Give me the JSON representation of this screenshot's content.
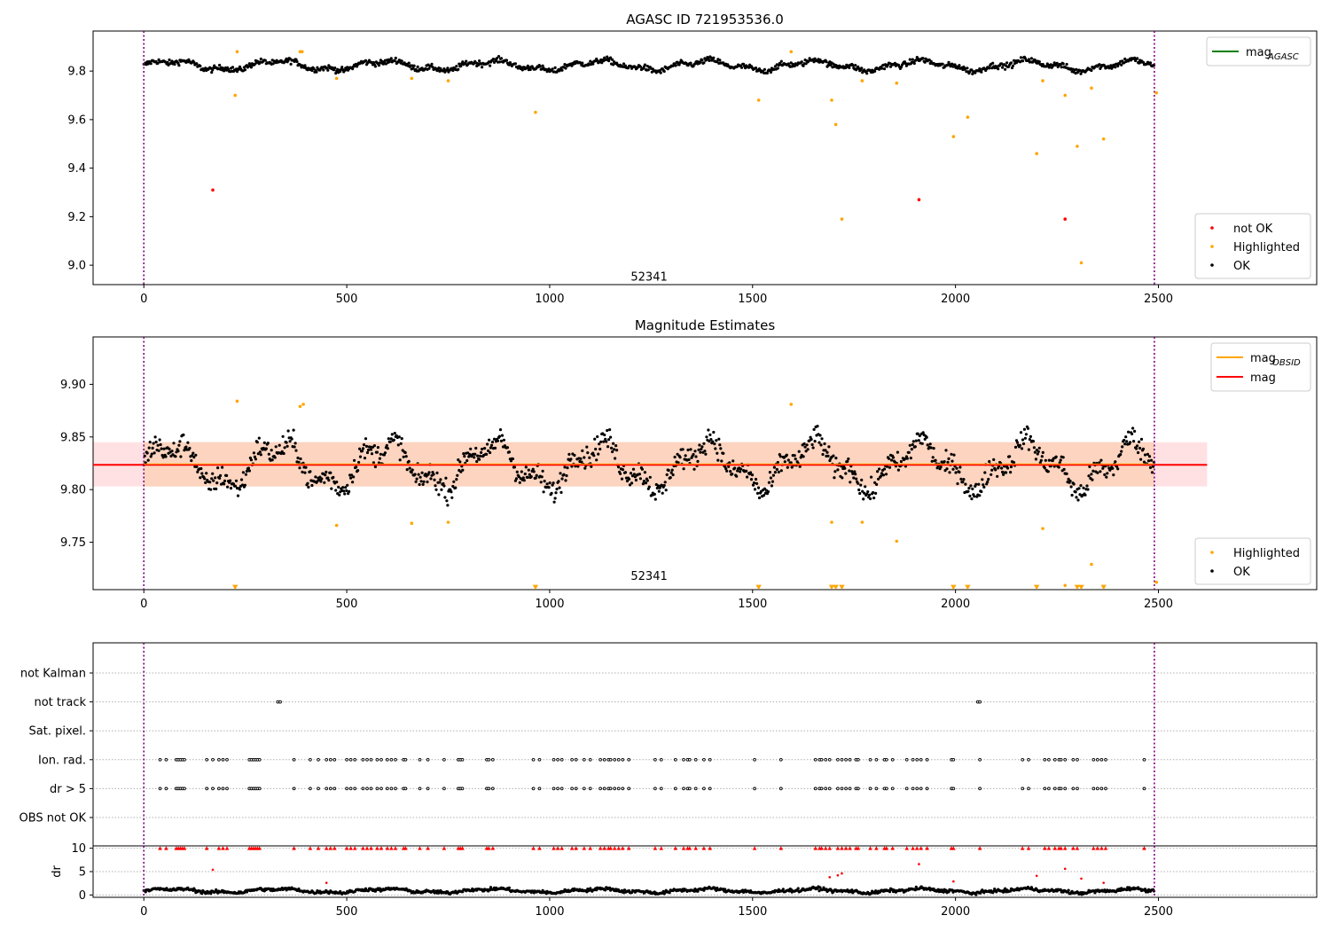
{
  "chart_data": [
    {
      "type": "scatter",
      "title": "AGASC ID 721953536.0",
      "xlim": [
        -125,
        2890
      ],
      "ylim": [
        8.92,
        9.965
      ],
      "x_ticks": [
        0,
        500,
        1000,
        1500,
        2000,
        2500
      ],
      "y_ticks": [
        9.0,
        9.2,
        9.4,
        9.6,
        9.8
      ],
      "vlines": [
        0,
        2490
      ],
      "obsid_label": {
        "text": "52341",
        "x": 1245,
        "y": 8.955
      },
      "baseline": {
        "mean": 9.823,
        "amplitude": 0.022,
        "noise": 0.012
      },
      "legend_lines": [
        {
          "label": "mag",
          "sub": "AGASC",
          "color": "#008000"
        }
      ],
      "legend_points": [
        {
          "label": "not OK",
          "color": "#ff0000"
        },
        {
          "label": "Highlighted",
          "color": "#ffa500"
        },
        {
          "label": "OK",
          "color": "#000000"
        }
      ],
      "series": [
        {
          "name": "not OK",
          "color": "#ff0000",
          "x": [
            170,
            1910,
            2270
          ],
          "y": [
            9.31,
            9.27,
            9.19
          ]
        },
        {
          "name": "Highlighted",
          "color": "#ffa500",
          "x": [
            225,
            230,
            385,
            390,
            475,
            660,
            750,
            965,
            1515,
            1595,
            1695,
            1705,
            1720,
            1770,
            1855,
            1995,
            2030,
            2200,
            2215,
            2270,
            2300,
            2310,
            2335,
            2365,
            2495
          ],
          "y": [
            9.7,
            9.88,
            9.88,
            9.88,
            9.77,
            9.77,
            9.76,
            9.63,
            9.68,
            9.88,
            9.68,
            9.58,
            9.19,
            9.76,
            9.75,
            9.53,
            9.61,
            9.46,
            9.76,
            9.7,
            9.49,
            9.01,
            9.73,
            9.52,
            9.71
          ]
        }
      ]
    },
    {
      "type": "scatter",
      "title": "Magnitude Estimates",
      "xlim": [
        -125,
        2890
      ],
      "ylim": [
        9.705,
        9.945
      ],
      "x_ticks": [
        0,
        500,
        1000,
        1500,
        2000,
        2500
      ],
      "y_ticks": [
        9.75,
        9.8,
        9.85,
        9.9
      ],
      "vlines": [
        0,
        2490
      ],
      "obsid_label": {
        "text": "52341",
        "x": 1245,
        "y": 9.711
      },
      "mean_line": {
        "y": 9.8235,
        "x0": -125,
        "x1": 2620,
        "color": "#ff0000"
      },
      "band": {
        "y0": 9.803,
        "y1": 9.845,
        "x0": -125,
        "x1": 2620
      },
      "baseline": {
        "mean": 9.823,
        "amplitude": 0.024,
        "noise": 0.011
      },
      "legend_lines": [
        {
          "label": "mag",
          "sub": "OBSID",
          "color": "#ffa500"
        },
        {
          "label": "mag",
          "sub": "",
          "color": "#ff0000"
        }
      ],
      "legend_points": [
        {
          "label": "Highlighted",
          "color": "#ffa500"
        },
        {
          "label": "OK",
          "color": "#000000"
        }
      ],
      "series": [
        {
          "name": "Highlighted",
          "color": "#ffa500",
          "x": [
            230,
            385,
            393,
            475,
            660,
            750,
            1595,
            1695,
            1770,
            1855,
            2215,
            2270,
            2335,
            2495
          ],
          "y": [
            9.884,
            9.879,
            9.881,
            9.766,
            9.768,
            9.769,
            9.881,
            9.769,
            9.769,
            9.751,
            9.763,
            9.709,
            9.729,
            9.712
          ]
        },
        {
          "name": "Highlighted (below range)",
          "color": "#ffa500",
          "marker": "triangle-down",
          "x": [
            225,
            965,
            1515,
            1695,
            1705,
            1720,
            1995,
            2030,
            2200,
            2300,
            2310,
            2365
          ],
          "y": [
            9.707,
            9.707,
            9.707,
            9.707,
            9.707,
            9.707,
            9.707,
            9.707,
            9.707,
            9.707,
            9.707,
            9.707
          ]
        }
      ]
    },
    {
      "type": "event_flags",
      "xlim": [
        -125,
        2890
      ],
      "categories": [
        "not Kalman",
        "not track",
        "Sat. pixel.",
        "Ion. rad.",
        "dr > 5",
        "OBS not OK"
      ],
      "vlines": [
        0,
        2490
      ],
      "events": {
        "not track": [
          330,
          336,
          2055,
          2060
        ],
        "Ion. rad.": [
          40,
          55,
          80,
          85,
          90,
          95,
          100,
          155,
          170,
          185,
          195,
          205,
          260,
          265,
          270,
          275,
          280,
          285,
          370,
          410,
          430,
          450,
          460,
          470,
          500,
          510,
          520,
          540,
          550,
          560,
          575,
          585,
          600,
          610,
          620,
          640,
          645,
          680,
          700,
          740,
          775,
          780,
          785,
          845,
          850,
          860,
          960,
          975,
          1010,
          1020,
          1030,
          1055,
          1065,
          1085,
          1100,
          1125,
          1135,
          1145,
          1150,
          1160,
          1170,
          1180,
          1195,
          1260,
          1275,
          1310,
          1330,
          1340,
          1345,
          1360,
          1380,
          1395,
          1505,
          1570,
          1655,
          1665,
          1670,
          1680,
          1690,
          1710,
          1720,
          1730,
          1740,
          1755,
          1760,
          1790,
          1805,
          1825,
          1830,
          1845,
          1880,
          1895,
          1905,
          1915,
          1930,
          1990,
          1995,
          2060,
          2165,
          2180,
          2220,
          2230,
          2245,
          2255,
          2260,
          2270,
          2290,
          2300,
          2340,
          2350,
          2360,
          2370,
          2465
        ],
        "dr > 5": [
          40,
          55,
          80,
          85,
          90,
          95,
          100,
          155,
          170,
          185,
          195,
          205,
          260,
          265,
          270,
          275,
          280,
          285,
          370,
          410,
          430,
          450,
          460,
          470,
          500,
          510,
          520,
          540,
          550,
          560,
          575,
          585,
          600,
          610,
          620,
          640,
          645,
          680,
          700,
          740,
          775,
          780,
          785,
          845,
          850,
          860,
          960,
          975,
          1010,
          1020,
          1030,
          1055,
          1065,
          1085,
          1100,
          1125,
          1135,
          1145,
          1150,
          1160,
          1170,
          1180,
          1195,
          1260,
          1275,
          1310,
          1330,
          1340,
          1345,
          1360,
          1380,
          1395,
          1505,
          1570,
          1655,
          1665,
          1670,
          1680,
          1690,
          1710,
          1720,
          1730,
          1740,
          1755,
          1760,
          1790,
          1805,
          1825,
          1830,
          1845,
          1880,
          1895,
          1905,
          1915,
          1930,
          1990,
          1995,
          2060,
          2165,
          2180,
          2220,
          2230,
          2245,
          2255,
          2260,
          2270,
          2290,
          2300,
          2340,
          2350,
          2360,
          2370,
          2465
        ]
      }
    },
    {
      "type": "scatter",
      "ylabel": "dr",
      "xlim": [
        -125,
        2890
      ],
      "ylim": [
        -0.5,
        10.5
      ],
      "x_ticks": [
        0,
        500,
        1000,
        1500,
        2000,
        2500
      ],
      "y_ticks": [
        0,
        5,
        10
      ],
      "vlines": [
        0,
        2490
      ],
      "baseline": {
        "mean": 0.9,
        "amplitude": 0.45,
        "noise": 0.35
      },
      "clipped_x": [
        40,
        55,
        80,
        85,
        90,
        95,
        100,
        155,
        185,
        195,
        205,
        260,
        265,
        270,
        275,
        280,
        285,
        370,
        410,
        430,
        450,
        460,
        470,
        500,
        510,
        520,
        540,
        550,
        560,
        575,
        585,
        600,
        610,
        620,
        640,
        645,
        680,
        700,
        740,
        775,
        780,
        785,
        845,
        850,
        860,
        960,
        975,
        1010,
        1020,
        1030,
        1055,
        1065,
        1085,
        1100,
        1125,
        1135,
        1145,
        1150,
        1160,
        1170,
        1180,
        1195,
        1260,
        1275,
        1310,
        1330,
        1340,
        1345,
        1360,
        1380,
        1395,
        1505,
        1570,
        1655,
        1665,
        1670,
        1680,
        1690,
        1710,
        1720,
        1730,
        1740,
        1755,
        1760,
        1790,
        1805,
        1825,
        1830,
        1845,
        1880,
        1895,
        1905,
        1915,
        1930,
        1990,
        1995,
        2060,
        2165,
        2180,
        2220,
        2230,
        2245,
        2255,
        2260,
        2270,
        2290,
        2300,
        2340,
        2350,
        2360,
        2370,
        2465
      ],
      "outliers": {
        "x": [
          170,
          450,
          1690,
          1710,
          1720,
          1910,
          1995,
          2200,
          2270,
          2310,
          2365
        ],
        "y": [
          5.4,
          2.6,
          3.8,
          4.2,
          4.6,
          6.6,
          2.9,
          4.1,
          5.6,
          3.5,
          2.6
        ]
      }
    }
  ]
}
